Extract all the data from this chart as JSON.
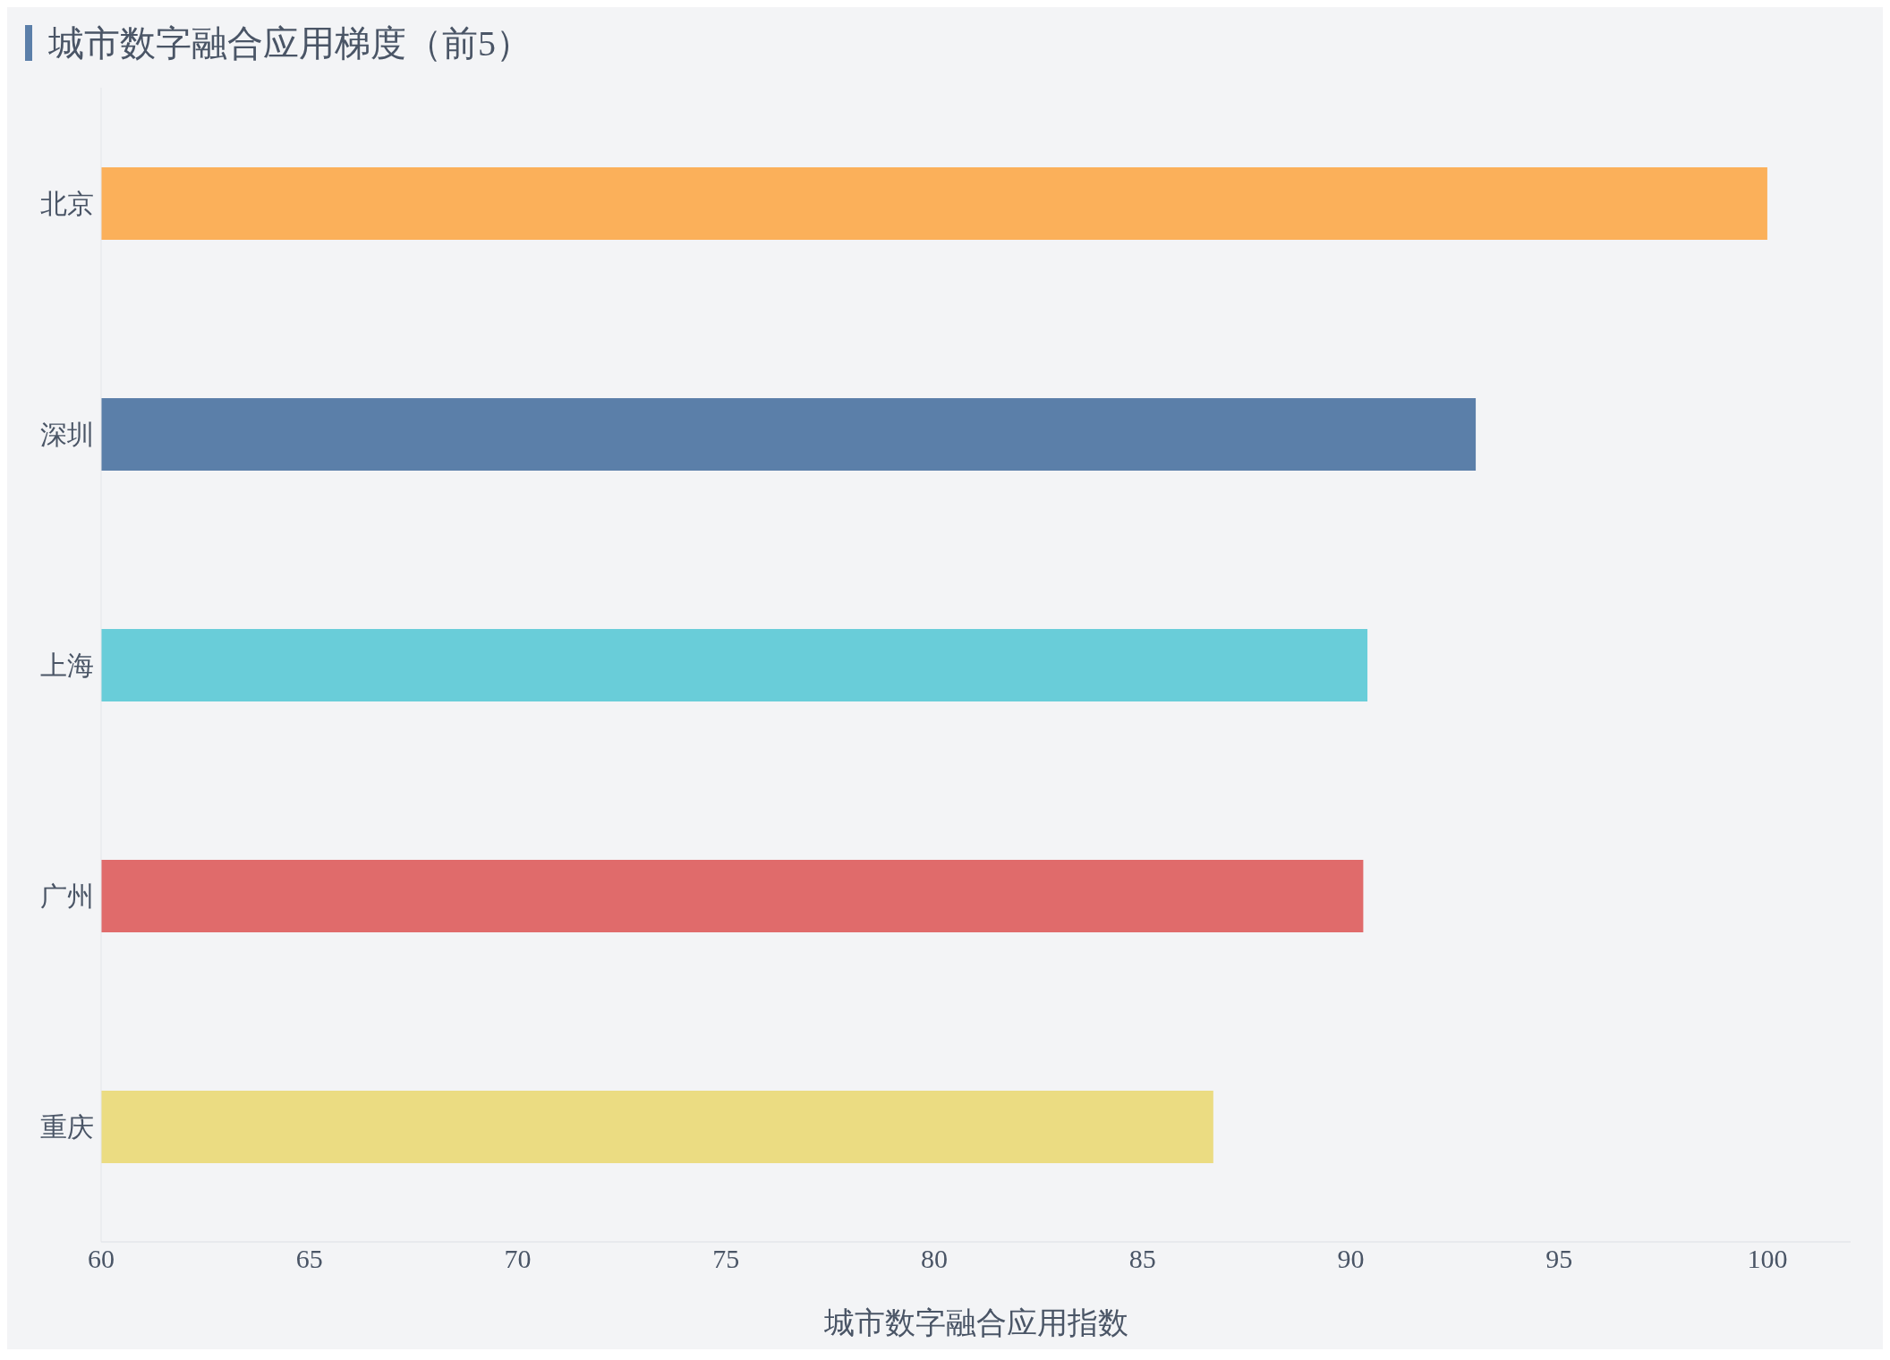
{
  "chart_data": {
    "type": "bar",
    "orientation": "horizontal",
    "title": "城市数字融合应用梯度（前5）",
    "xlabel": "城市数字融合应用指数",
    "categories": [
      "北京",
      "深圳",
      "上海",
      "广州",
      "重庆"
    ],
    "values": [
      100,
      93,
      90.4,
      90.3,
      86.7
    ],
    "colors": [
      "#fbb05a",
      "#5b7fa9",
      "#69cdd9",
      "#e06b6b",
      "#ebdc82"
    ],
    "xlim": [
      60,
      102
    ],
    "xticks": [
      60,
      65,
      70,
      75,
      80,
      85,
      90,
      95,
      100
    ],
    "grid": false
  }
}
